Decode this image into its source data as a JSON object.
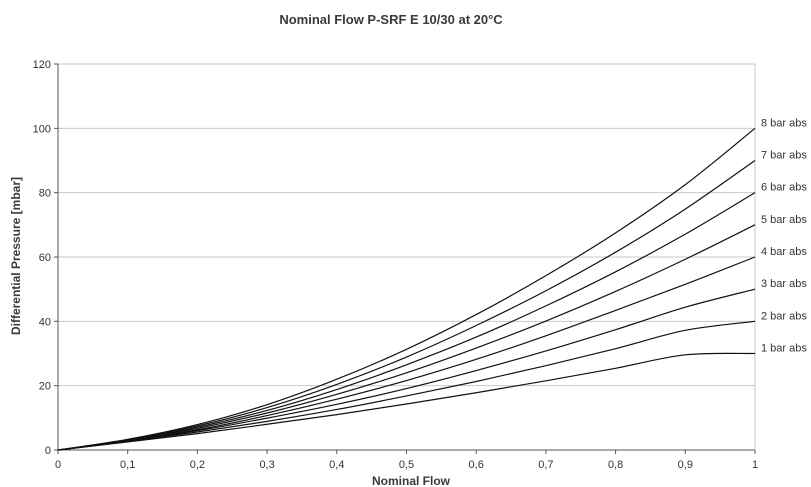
{
  "chart_data": {
    "type": "line",
    "title": "Nominal Flow P-SRF E 10/30 at 20°C",
    "xlabel": "Nominal Flow",
    "ylabel": "Differential Pressure [mbar]",
    "xlim": [
      0,
      1
    ],
    "ylim": [
      0,
      120
    ],
    "x_ticks": [
      "0",
      "0,1",
      "0,2",
      "0,3",
      "0,4",
      "0,5",
      "0,6",
      "0,7",
      "0,8",
      "0,9",
      "1"
    ],
    "y_ticks": [
      "0",
      "20",
      "40",
      "60",
      "80",
      "100",
      "120"
    ],
    "grid": "horizontal",
    "x": [
      0,
      0.1,
      0.2,
      0.3,
      0.4,
      0.5,
      0.6,
      0.7,
      0.8,
      0.9,
      1.0
    ],
    "series": [
      {
        "name": "1 bar abs",
        "values": [
          0,
          2.5,
          5.1,
          8.0,
          11.0,
          14.3,
          17.8,
          21.5,
          25.4,
          29.6,
          30
        ]
      },
      {
        "name": "2 bar abs",
        "values": [
          0,
          2.6,
          5.6,
          8.9,
          12.6,
          16.8,
          21.3,
          26.2,
          31.5,
          37.2,
          40
        ]
      },
      {
        "name": "3 bar abs",
        "values": [
          0,
          2.7,
          6.0,
          9.9,
          14.2,
          19.1,
          24.7,
          30.8,
          37.4,
          44.4,
          50
        ]
      },
      {
        "name": "4 bar abs",
        "values": [
          0,
          2.8,
          6.3,
          10.7,
          15.8,
          21.6,
          28.2,
          35.5,
          43.4,
          51.5,
          60
        ]
      },
      {
        "name": "5 bar abs",
        "values": [
          0,
          2.9,
          6.7,
          11.5,
          17.3,
          24.0,
          31.7,
          40.1,
          49.3,
          59.3,
          70
        ]
      },
      {
        "name": "6 bar abs",
        "values": [
          0,
          3.0,
          7.1,
          12.3,
          18.8,
          26.5,
          35.1,
          44.8,
          55.4,
          67.1,
          80
        ]
      },
      {
        "name": "7 bar abs",
        "values": [
          0,
          3.2,
          7.5,
          13.2,
          20.4,
          28.9,
          38.7,
          49.5,
          61.5,
          74.9,
          90
        ]
      },
      {
        "name": "8 bar abs",
        "values": [
          0,
          3.3,
          7.9,
          14.1,
          22.0,
          31.3,
          42.1,
          54.2,
          67.5,
          82.5,
          100
        ]
      }
    ]
  }
}
